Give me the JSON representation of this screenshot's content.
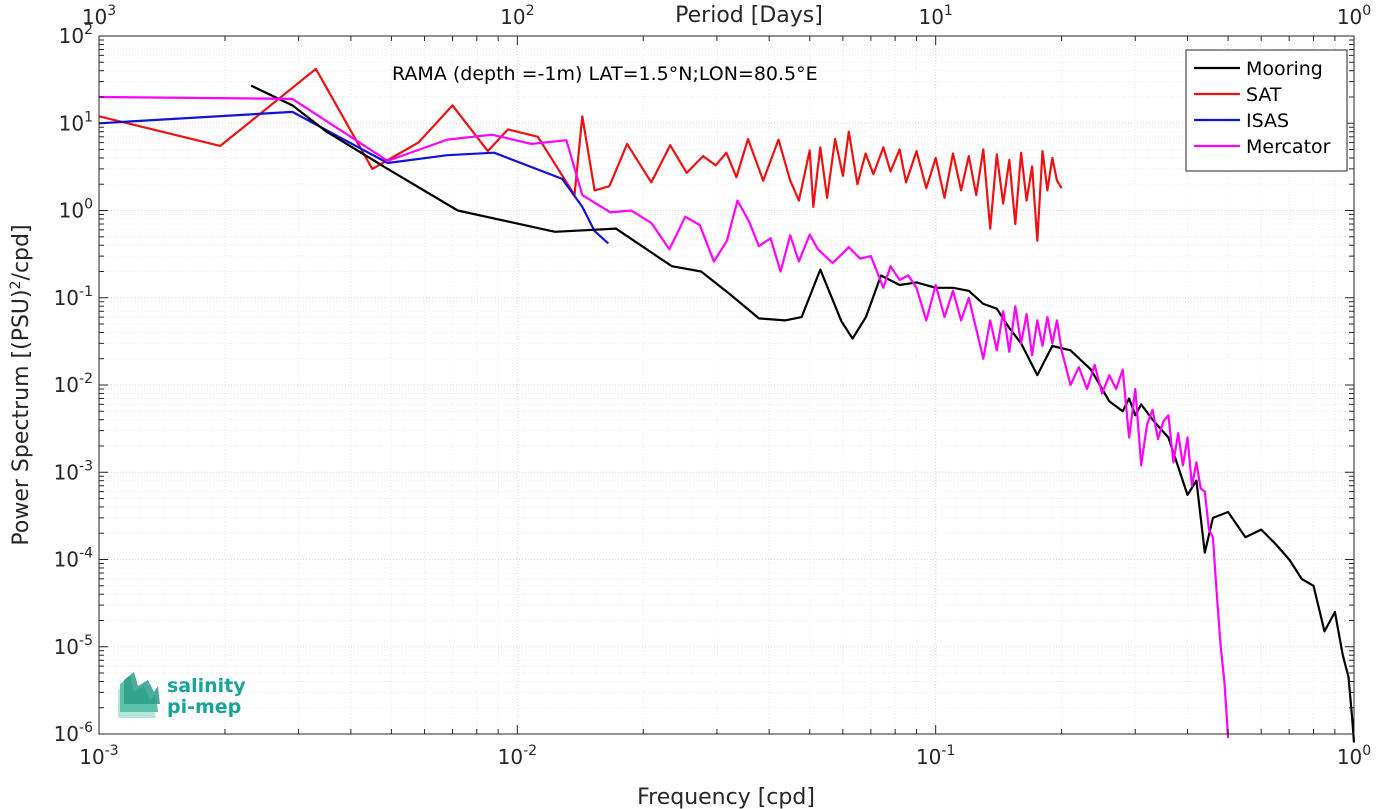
{
  "chart_data": {
    "type": "line",
    "title": "",
    "annotation": "RAMA (depth =-1m) LAT=1.5°N;LON=80.5°E",
    "xlabel": "Frequency [cpd]",
    "ylabel_main": "Power Spectrum [(PSU)",
    "ylabel_sup": "2",
    "ylabel_tail": "/cpd]",
    "top_xlabel": "Period [Days]",
    "x_scale": "log",
    "y_scale": "log",
    "xlim": [
      0.001,
      1
    ],
    "ylim": [
      1e-06,
      100
    ],
    "grid": true,
    "legend_position": "top-right",
    "x_ticks": [
      {
        "value": 0.001,
        "base": "10",
        "exp": "-3"
      },
      {
        "value": 0.01,
        "base": "10",
        "exp": "-2"
      },
      {
        "value": 0.1,
        "base": "10",
        "exp": "-1"
      },
      {
        "value": 1,
        "base": "10",
        "exp": "0"
      }
    ],
    "y_ticks": [
      {
        "value": 1e-06,
        "base": "10",
        "exp": "-6"
      },
      {
        "value": 1e-05,
        "base": "10",
        "exp": "-5"
      },
      {
        "value": 0.0001,
        "base": "10",
        "exp": "-4"
      },
      {
        "value": 0.001,
        "base": "10",
        "exp": "-3"
      },
      {
        "value": 0.01,
        "base": "10",
        "exp": "-2"
      },
      {
        "value": 0.1,
        "base": "10",
        "exp": "-1"
      },
      {
        "value": 1,
        "base": "10",
        "exp": "0"
      },
      {
        "value": 10,
        "base": "10",
        "exp": "1"
      },
      {
        "value": 100,
        "base": "10",
        "exp": "2"
      }
    ],
    "top_ticks": [
      {
        "value": 1000,
        "base": "10",
        "exp": "3"
      },
      {
        "value": 100,
        "base": "10",
        "exp": "2"
      },
      {
        "value": 10,
        "base": "10",
        "exp": "1"
      },
      {
        "value": 1,
        "base": "10",
        "exp": "0"
      }
    ],
    "series": [
      {
        "name": "Mooring",
        "color": "#000000",
        "points": [
          [
            0.00231,
            27
          ],
          [
            0.0029,
            16
          ],
          [
            0.0035,
            8
          ],
          [
            0.0049,
            3
          ],
          [
            0.0072,
            1.0
          ],
          [
            0.0123,
            0.57
          ],
          [
            0.0172,
            0.62
          ],
          [
            0.0234,
            0.23
          ],
          [
            0.0275,
            0.2
          ],
          [
            0.0322,
            0.11
          ],
          [
            0.0378,
            0.058
          ],
          [
            0.0436,
            0.055
          ],
          [
            0.0478,
            0.06
          ],
          [
            0.053,
            0.21
          ],
          [
            0.0595,
            0.054
          ],
          [
            0.0633,
            0.034
          ],
          [
            0.0681,
            0.06
          ],
          [
            0.074,
            0.18
          ],
          [
            0.082,
            0.14
          ],
          [
            0.09,
            0.15
          ],
          [
            0.1,
            0.13
          ],
          [
            0.11,
            0.13
          ],
          [
            0.12,
            0.12
          ],
          [
            0.13,
            0.085
          ],
          [
            0.14,
            0.075
          ],
          [
            0.15,
            0.045
          ],
          [
            0.16,
            0.03
          ],
          [
            0.175,
            0.013
          ],
          [
            0.19,
            0.028
          ],
          [
            0.21,
            0.025
          ],
          [
            0.235,
            0.015
          ],
          [
            0.26,
            0.0065
          ],
          [
            0.28,
            0.005
          ],
          [
            0.29,
            0.007
          ],
          [
            0.3,
            0.0045
          ],
          [
            0.31,
            0.006
          ],
          [
            0.33,
            0.004
          ],
          [
            0.36,
            0.0025
          ],
          [
            0.4,
            0.00055
          ],
          [
            0.42,
            0.0008
          ],
          [
            0.44,
            0.00012
          ],
          [
            0.46,
            0.0003
          ],
          [
            0.5,
            0.00035
          ],
          [
            0.55,
            0.00018
          ],
          [
            0.6,
            0.00022
          ],
          [
            0.65,
            0.00015
          ],
          [
            0.7,
            0.0001
          ],
          [
            0.75,
            6e-05
          ],
          [
            0.8,
            5e-05
          ],
          [
            0.85,
            1.5e-05
          ],
          [
            0.9,
            2.5e-05
          ],
          [
            0.94,
            8e-06
          ],
          [
            0.97,
            4.5e-06
          ],
          [
            0.99,
            1.5e-06
          ],
          [
            1.0,
            8e-07
          ]
        ]
      },
      {
        "name": "SAT",
        "color": "#ee1111",
        "points": [
          [
            0.001,
            12
          ],
          [
            0.00195,
            5.5
          ],
          [
            0.0033,
            42
          ],
          [
            0.0045,
            3
          ],
          [
            0.0058,
            6
          ],
          [
            0.007,
            16
          ],
          [
            0.0085,
            4.8
          ],
          [
            0.0095,
            8.5
          ],
          [
            0.0112,
            7
          ],
          [
            0.0137,
            1.5
          ],
          [
            0.0143,
            12
          ],
          [
            0.0153,
            1.7
          ],
          [
            0.0166,
            1.9
          ],
          [
            0.0183,
            5.8
          ],
          [
            0.0209,
            2.1
          ],
          [
            0.0232,
            5.6
          ],
          [
            0.0254,
            2.7
          ],
          [
            0.0278,
            4.2
          ],
          [
            0.0298,
            3.3
          ],
          [
            0.0316,
            4.6
          ],
          [
            0.0334,
            2.4
          ],
          [
            0.0356,
            6.6
          ],
          [
            0.0387,
            2.2
          ],
          [
            0.0421,
            6.5
          ],
          [
            0.0449,
            2.2
          ],
          [
            0.0471,
            1.3
          ],
          [
            0.05,
            4.9
          ],
          [
            0.051,
            1.1
          ],
          [
            0.053,
            5.3
          ],
          [
            0.055,
            1.4
          ],
          [
            0.0575,
            6.6
          ],
          [
            0.06,
            2.5
          ],
          [
            0.062,
            8.0
          ],
          [
            0.065,
            2.0
          ],
          [
            0.068,
            4.5
          ],
          [
            0.071,
            2.6
          ],
          [
            0.075,
            5.3
          ],
          [
            0.078,
            2.8
          ],
          [
            0.082,
            5.0
          ],
          [
            0.085,
            2.1
          ],
          [
            0.09,
            4.8
          ],
          [
            0.095,
            1.8
          ],
          [
            0.1,
            4.0
          ],
          [
            0.105,
            1.4
          ],
          [
            0.11,
            4.5
          ],
          [
            0.115,
            1.7
          ],
          [
            0.12,
            4.2
          ],
          [
            0.125,
            1.5
          ],
          [
            0.13,
            5.0
          ],
          [
            0.135,
            0.62
          ],
          [
            0.14,
            4.4
          ],
          [
            0.145,
            1.2
          ],
          [
            0.15,
            3.8
          ],
          [
            0.155,
            0.7
          ],
          [
            0.16,
            4.6
          ],
          [
            0.165,
            1.3
          ],
          [
            0.17,
            3.2
          ],
          [
            0.175,
            0.45
          ],
          [
            0.18,
            4.8
          ],
          [
            0.185,
            1.7
          ],
          [
            0.19,
            4.0
          ],
          [
            0.195,
            2.2
          ],
          [
            0.2,
            1.8
          ]
        ]
      },
      {
        "name": "ISAS",
        "color": "#1111dd",
        "points": [
          [
            0.001,
            10
          ],
          [
            0.0029,
            13.5
          ],
          [
            0.0049,
            3.5
          ],
          [
            0.0068,
            4.3
          ],
          [
            0.0088,
            4.6
          ],
          [
            0.0128,
            2.3
          ],
          [
            0.0143,
            1.1
          ],
          [
            0.0153,
            0.58
          ],
          [
            0.0165,
            0.42
          ]
        ]
      },
      {
        "name": "Mercator",
        "color": "#ff00ff",
        "points": [
          [
            0.001,
            20
          ],
          [
            0.0029,
            19
          ],
          [
            0.0049,
            3.7
          ],
          [
            0.0068,
            6.5
          ],
          [
            0.0087,
            7.4
          ],
          [
            0.0108,
            5.8
          ],
          [
            0.0131,
            6.4
          ],
          [
            0.0143,
            1.5
          ],
          [
            0.0167,
            0.95
          ],
          [
            0.0187,
            1.0
          ],
          [
            0.0209,
            0.72
          ],
          [
            0.0231,
            0.36
          ],
          [
            0.0252,
            0.85
          ],
          [
            0.0273,
            0.68
          ],
          [
            0.0295,
            0.26
          ],
          [
            0.0317,
            0.45
          ],
          [
            0.0336,
            1.3
          ],
          [
            0.0358,
            0.75
          ],
          [
            0.0378,
            0.39
          ],
          [
            0.0403,
            0.48
          ],
          [
            0.0426,
            0.2
          ],
          [
            0.0449,
            0.52
          ],
          [
            0.0471,
            0.26
          ],
          [
            0.05,
            0.53
          ],
          [
            0.0523,
            0.36
          ],
          [
            0.0567,
            0.25
          ],
          [
            0.0598,
            0.32
          ],
          [
            0.062,
            0.38
          ],
          [
            0.066,
            0.28
          ],
          [
            0.07,
            0.3
          ],
          [
            0.075,
            0.13
          ],
          [
            0.078,
            0.23
          ],
          [
            0.082,
            0.16
          ],
          [
            0.086,
            0.18
          ],
          [
            0.09,
            0.13
          ],
          [
            0.095,
            0.055
          ],
          [
            0.1,
            0.14
          ],
          [
            0.105,
            0.06
          ],
          [
            0.11,
            0.12
          ],
          [
            0.115,
            0.055
          ],
          [
            0.12,
            0.1
          ],
          [
            0.13,
            0.02
          ],
          [
            0.135,
            0.055
          ],
          [
            0.14,
            0.025
          ],
          [
            0.145,
            0.07
          ],
          [
            0.15,
            0.024
          ],
          [
            0.155,
            0.08
          ],
          [
            0.16,
            0.03
          ],
          [
            0.165,
            0.065
          ],
          [
            0.17,
            0.022
          ],
          [
            0.175,
            0.055
          ],
          [
            0.18,
            0.028
          ],
          [
            0.185,
            0.06
          ],
          [
            0.19,
            0.03
          ],
          [
            0.195,
            0.055
          ],
          [
            0.2,
            0.025
          ],
          [
            0.21,
            0.01
          ],
          [
            0.22,
            0.016
          ],
          [
            0.23,
            0.009
          ],
          [
            0.24,
            0.017
          ],
          [
            0.25,
            0.008
          ],
          [
            0.26,
            0.013
          ],
          [
            0.27,
            0.009
          ],
          [
            0.28,
            0.015
          ],
          [
            0.29,
            0.0025
          ],
          [
            0.3,
            0.009
          ],
          [
            0.31,
            0.0012
          ],
          [
            0.32,
            0.0035
          ],
          [
            0.33,
            0.0052
          ],
          [
            0.34,
            0.0024
          ],
          [
            0.35,
            0.0038
          ],
          [
            0.36,
            0.0045
          ],
          [
            0.37,
            0.0013
          ],
          [
            0.38,
            0.0028
          ],
          [
            0.39,
            0.0012
          ],
          [
            0.4,
            0.0025
          ],
          [
            0.41,
            0.0007
          ],
          [
            0.42,
            0.0013
          ],
          [
            0.43,
            0.00065
          ],
          [
            0.44,
            0.0006
          ],
          [
            0.45,
            0.00022
          ],
          [
            0.46,
            0.00018
          ],
          [
            0.47,
            4e-05
          ],
          [
            0.48,
            1e-05
          ],
          [
            0.49,
            4e-06
          ],
          [
            0.5,
            9e-07
          ]
        ]
      }
    ]
  },
  "logo": {
    "line1": "salinity",
    "line2": "pi-mep"
  }
}
